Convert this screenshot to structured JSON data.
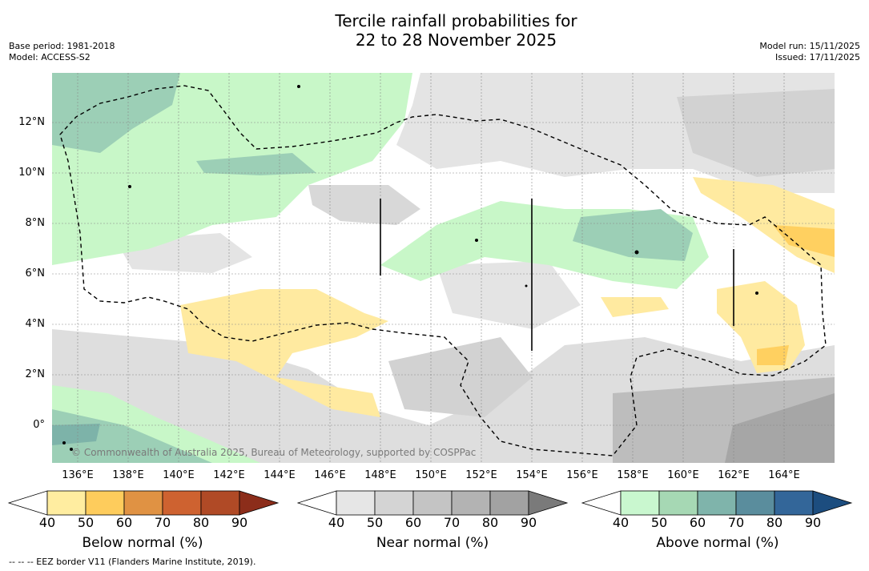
{
  "title": {
    "line1": "Tercile rainfall probabilities for",
    "line2": "22 to 28 November 2025"
  },
  "meta_left": {
    "base_period": "Base period: 1981-2018",
    "model": "Model: ACCESS-S2"
  },
  "meta_right": {
    "model_run": "Model run: 15/11/2025",
    "issued": "Issued: 17/11/2025"
  },
  "map": {
    "lat_labels": [
      "12°N",
      "10°N",
      "8°N",
      "6°N",
      "4°N",
      "2°N",
      "0°"
    ],
    "lon_labels": [
      "136°E",
      "138°E",
      "140°E",
      "142°E",
      "144°E",
      "146°E",
      "148°E",
      "150°E",
      "152°E",
      "154°E",
      "156°E",
      "158°E",
      "160°E",
      "162°E",
      "164°E"
    ],
    "copyright": "© Commonwealth of Australia 2025, Bureau of Meteorology, supported by COSPPac",
    "colors": {
      "above_50": "#c8f7c8",
      "above_60": "#9ccfb6",
      "above_70": "#7db3a9",
      "near_50": "#e4e4e4",
      "near_60": "#d2d2d2",
      "near_70": "#bdbdbd",
      "near_80": "#a6a6a6",
      "below_50": "#ffeaa0",
      "below_60": "#ffd060"
    }
  },
  "colorbars": [
    {
      "title": "Below normal (%)",
      "ticks": [
        "40",
        "50",
        "60",
        "70",
        "80",
        "90"
      ],
      "low_color": "#ffffff",
      "colors": [
        "#ffeda0",
        "#fecc5c",
        "#e09243",
        "#ce6230",
        "#b04a26"
      ],
      "high_color": "#8c2d1a"
    },
    {
      "title": "Near normal (%)",
      "ticks": [
        "40",
        "50",
        "60",
        "70",
        "80",
        "90"
      ],
      "low_color": "#ffffff",
      "colors": [
        "#e6e6e6",
        "#d4d4d4",
        "#c4c4c4",
        "#b3b3b3",
        "#a2a2a2"
      ],
      "high_color": "#7a7a7a"
    },
    {
      "title": "Above normal (%)",
      "ticks": [
        "40",
        "50",
        "60",
        "70",
        "80",
        "90"
      ],
      "low_color": "#ffffff",
      "colors": [
        "#c9f7cf",
        "#a6d8b4",
        "#7fb4ab",
        "#5a8d9d",
        "#336699"
      ],
      "high_color": "#1c4d7f"
    }
  ],
  "footnote": "--  --  -- EEZ border V11 (Flanders Marine Institute, 2019)."
}
